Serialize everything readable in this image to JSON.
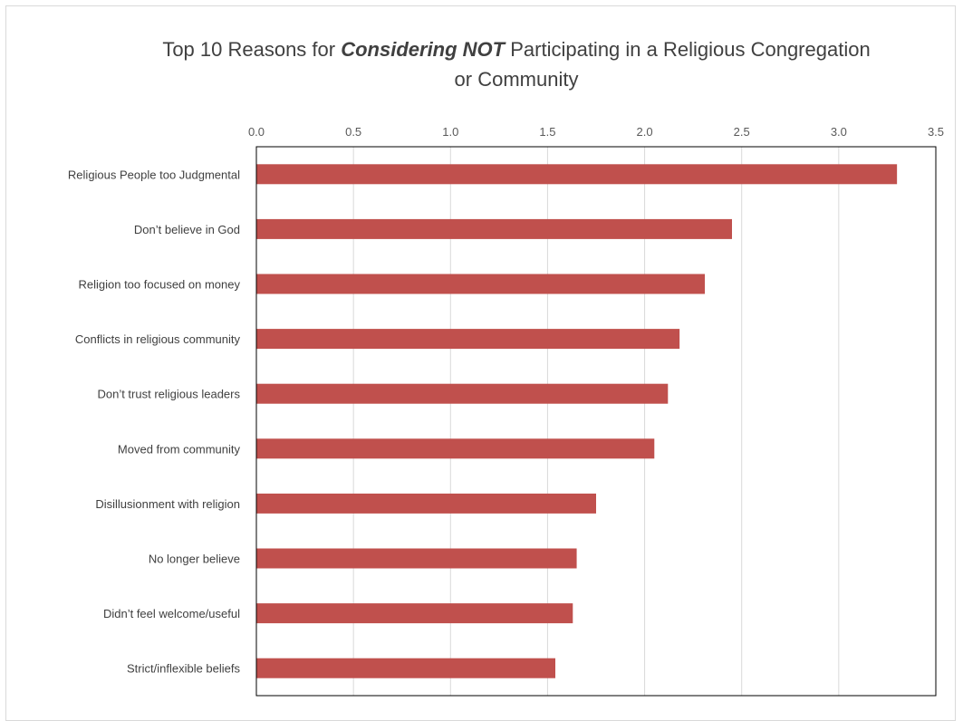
{
  "chart_data": {
    "type": "bar",
    "orientation": "horizontal",
    "title": {
      "prefix": "Top 10 Reasons for ",
      "emphasis": "Considering NOT",
      "suffix_line1": " Participating in a Religious Congregation",
      "line2": "or Community"
    },
    "categories": [
      "Religious People too Judgmental",
      "Don’t believe in God",
      "Religion too focused on money",
      "Conflicts in religious community",
      "Don’t trust religious leaders",
      "Moved from community",
      "Disillusionment with religion",
      "No longer believe",
      "Didn’t feel welcome/useful",
      "Strict/inflexible beliefs"
    ],
    "values": [
      3.3,
      2.45,
      2.31,
      2.18,
      2.12,
      2.05,
      1.75,
      1.65,
      1.63,
      1.54
    ],
    "xlim": [
      0,
      3.5
    ],
    "ticks": [
      "0.0",
      "0.5",
      "1.0",
      "1.5",
      "2.0",
      "2.5",
      "3.0",
      "3.5"
    ],
    "axis_position": "top",
    "grid": true,
    "bar_color": "#c0504d",
    "grid_color": "#d9d9d9"
  }
}
